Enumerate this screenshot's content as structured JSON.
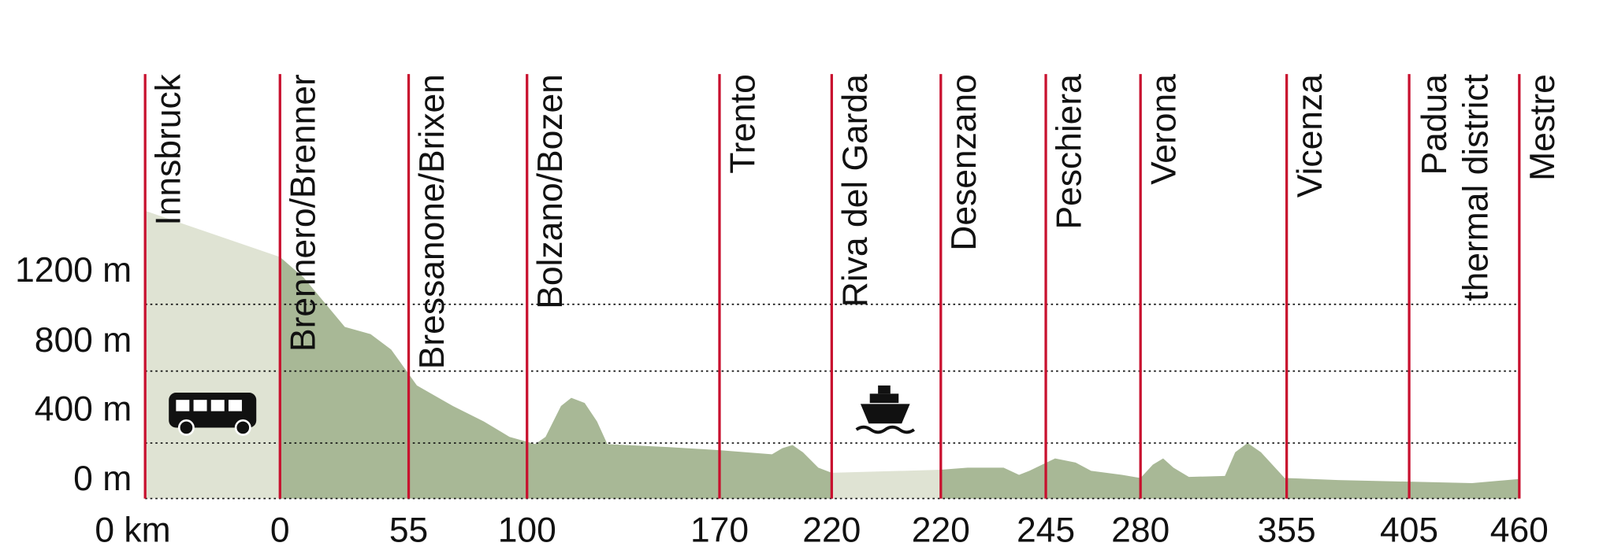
{
  "y_axis": {
    "labels": [
      "1200 m",
      "800 m",
      "400 m",
      "0 m"
    ]
  },
  "stops": [
    {
      "lines": [
        "Innsbruck"
      ],
      "km": "0 km"
    },
    {
      "lines": [
        "Brennero/Brenner"
      ],
      "km": "0"
    },
    {
      "lines": [
        "Bressanone/Brixen"
      ],
      "km": "55"
    },
    {
      "lines": [
        "Bolzano/Bozen"
      ],
      "km": "100"
    },
    {
      "lines": [
        "Trento"
      ],
      "km": "170"
    },
    {
      "lines": [
        "Riva del Garda"
      ],
      "km": "220"
    },
    {
      "lines": [
        "Desenzano"
      ],
      "km": "220"
    },
    {
      "lines": [
        "Peschiera"
      ],
      "km": "245"
    },
    {
      "lines": [
        "Verona"
      ],
      "km": "280"
    },
    {
      "lines": [
        "Vicenza"
      ],
      "km": "355"
    },
    {
      "lines": [
        "Padua",
        "thermal district"
      ],
      "km": "405"
    },
    {
      "lines": [
        "Mestre"
      ],
      "km": "460"
    }
  ]
}
